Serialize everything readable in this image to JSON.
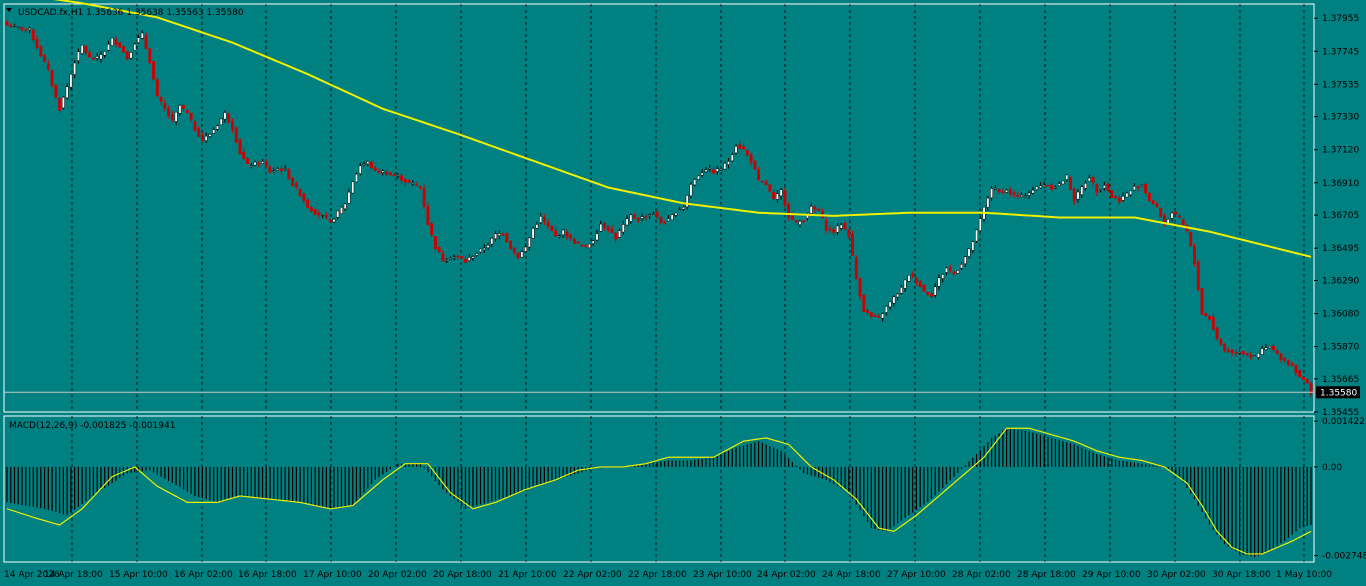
{
  "header": {
    "symbol_line": "USDCAD.fx,H1  1.35636 1.35638 1.35563 1.35580",
    "menu_icon": "triangle-down-icon"
  },
  "colors": {
    "background": "#008080",
    "bull_candle": "#ffffff",
    "bear_candle": "#cc0000",
    "ma_line": "#f0f000",
    "macd_signal": "#f0f000",
    "grid": "#000000",
    "price_line": "#c8c8c8"
  },
  "chart_data": [
    {
      "type": "candlestick",
      "symbol": "USDCAD.fx",
      "timeframe": "H1",
      "current_price": "1.35580",
      "ohlc_last": {
        "open": 1.35636,
        "high": 1.35638,
        "low": 1.35563,
        "close": 1.3558
      },
      "ylim": [
        1.35455,
        1.38045
      ],
      "y_ticks": [
        "1.37955",
        "1.37745",
        "1.37535",
        "1.37330",
        "1.37120",
        "1.36910",
        "1.36705",
        "1.36495",
        "1.36290",
        "1.36080",
        "1.35870",
        "1.35665",
        "1.35455"
      ],
      "x_ticks": [
        "14 Apr 2026",
        "14 Apr 18:00",
        "15 Apr 10:00",
        "16 Apr 02:00",
        "16 Apr 18:00",
        "17 Apr 10:00",
        "20 Apr 02:00",
        "20 Apr 18:00",
        "21 Apr 10:00",
        "22 Apr 02:00",
        "22 Apr 18:00",
        "23 Apr 10:00",
        "24 Apr 02:00",
        "24 Apr 18:00",
        "27 Apr 10:00",
        "28 Apr 02:00",
        "28 Apr 18:00",
        "29 Apr 10:00",
        "30 Apr 02:00",
        "30 Apr 18:00",
        "1 May 10:00"
      ],
      "grid": true,
      "price_anchors": [
        [
          0,
          1.3791
        ],
        [
          4,
          1.3789
        ],
        [
          6,
          1.3788
        ],
        [
          9,
          1.3772
        ],
        [
          11,
          1.3762
        ],
        [
          13,
          1.3745
        ],
        [
          14,
          1.3738
        ],
        [
          16,
          1.3752
        ],
        [
          18,
          1.3768
        ],
        [
          20,
          1.3778
        ],
        [
          22,
          1.377
        ],
        [
          24,
          1.377
        ],
        [
          26,
          1.3775
        ],
        [
          28,
          1.3782
        ],
        [
          30,
          1.3778
        ],
        [
          32,
          1.377
        ],
        [
          34,
          1.378
        ],
        [
          36,
          1.3785
        ],
        [
          38,
          1.3768
        ],
        [
          40,
          1.3745
        ],
        [
          42,
          1.3738
        ],
        [
          44,
          1.373
        ],
        [
          46,
          1.374
        ],
        [
          48,
          1.3735
        ],
        [
          50,
          1.3725
        ],
        [
          52,
          1.3718
        ],
        [
          54,
          1.3722
        ],
        [
          56,
          1.3728
        ],
        [
          58,
          1.3735
        ],
        [
          60,
          1.3726
        ],
        [
          62,
          1.371
        ],
        [
          64,
          1.3702
        ],
        [
          66,
          1.3703
        ],
        [
          68,
          1.3704
        ],
        [
          70,
          1.3698
        ],
        [
          72,
          1.37
        ],
        [
          74,
          1.3699
        ],
        [
          76,
          1.369
        ],
        [
          78,
          1.3684
        ],
        [
          80,
          1.3676
        ],
        [
          82,
          1.3672
        ],
        [
          84,
          1.367
        ],
        [
          86,
          1.3666
        ],
        [
          88,
          1.3672
        ],
        [
          90,
          1.3678
        ],
        [
          92,
          1.3692
        ],
        [
          94,
          1.3702
        ],
        [
          96,
          1.3704
        ],
        [
          98,
          1.3698
        ],
        [
          100,
          1.3698
        ],
        [
          102,
          1.3696
        ],
        [
          104,
          1.3695
        ],
        [
          106,
          1.3692
        ],
        [
          108,
          1.369
        ],
        [
          110,
          1.3688
        ],
        [
          112,
          1.3665
        ],
        [
          114,
          1.365
        ],
        [
          116,
          1.3642
        ],
        [
          118,
          1.3644
        ],
        [
          120,
          1.3644
        ],
        [
          122,
          1.3641
        ],
        [
          124,
          1.3645
        ],
        [
          126,
          1.3648
        ],
        [
          128,
          1.3652
        ],
        [
          130,
          1.3658
        ],
        [
          132,
          1.3659
        ],
        [
          134,
          1.365
        ],
        [
          136,
          1.3644
        ],
        [
          138,
          1.365
        ],
        [
          140,
          1.3662
        ],
        [
          142,
          1.3669
        ],
        [
          144,
          1.3663
        ],
        [
          146,
          1.3657
        ],
        [
          148,
          1.366
        ],
        [
          150,
          1.3655
        ],
        [
          152,
          1.3652
        ],
        [
          154,
          1.365
        ],
        [
          156,
          1.3655
        ],
        [
          158,
          1.3665
        ],
        [
          160,
          1.3662
        ],
        [
          162,
          1.3656
        ],
        [
          164,
          1.3664
        ],
        [
          166,
          1.367
        ],
        [
          168,
          1.3668
        ],
        [
          170,
          1.367
        ],
        [
          172,
          1.3672
        ],
        [
          174,
          1.3666
        ],
        [
          176,
          1.3667
        ],
        [
          178,
          1.3673
        ],
        [
          180,
          1.3676
        ],
        [
          182,
          1.369
        ],
        [
          184,
          1.3696
        ],
        [
          186,
          1.37
        ],
        [
          188,
          1.3698
        ],
        [
          190,
          1.37
        ],
        [
          192,
          1.3705
        ],
        [
          194,
          1.3715
        ],
        [
          196,
          1.3712
        ],
        [
          198,
          1.3705
        ],
        [
          200,
          1.3692
        ],
        [
          202,
          1.369
        ],
        [
          204,
          1.368
        ],
        [
          206,
          1.3686
        ],
        [
          208,
          1.367
        ],
        [
          210,
          1.3665
        ],
        [
          212,
          1.3668
        ],
        [
          214,
          1.3675
        ],
        [
          216,
          1.3673
        ],
        [
          218,
          1.3662
        ],
        [
          220,
          1.366
        ],
        [
          222,
          1.3665
        ],
        [
          224,
          1.3658
        ],
        [
          226,
          1.363
        ],
        [
          228,
          1.361
        ],
        [
          230,
          1.3606
        ],
        [
          232,
          1.3605
        ],
        [
          234,
          1.3612
        ],
        [
          236,
          1.3618
        ],
        [
          238,
          1.3624
        ],
        [
          240,
          1.3633
        ],
        [
          242,
          1.3629
        ],
        [
          244,
          1.3622
        ],
        [
          246,
          1.362
        ],
        [
          248,
          1.363
        ],
        [
          250,
          1.3637
        ],
        [
          252,
          1.3633
        ],
        [
          254,
          1.364
        ],
        [
          256,
          1.3648
        ],
        [
          258,
          1.366
        ],
        [
          260,
          1.3675
        ],
        [
          262,
          1.3688
        ],
        [
          264,
          1.3685
        ],
        [
          266,
          1.3686
        ],
        [
          268,
          1.3683
        ],
        [
          270,
          1.3682
        ],
        [
          272,
          1.3685
        ],
        [
          274,
          1.3688
        ],
        [
          276,
          1.369
        ],
        [
          278,
          1.3688
        ],
        [
          280,
          1.369
        ],
        [
          282,
          1.3695
        ],
        [
          284,
          1.368
        ],
        [
          286,
          1.3688
        ],
        [
          288,
          1.3695
        ],
        [
          290,
          1.3686
        ],
        [
          292,
          1.369
        ],
        [
          294,
          1.3682
        ],
        [
          296,
          1.368
        ],
        [
          298,
          1.3684
        ],
        [
          300,
          1.3688
        ],
        [
          302,
          1.369
        ],
        [
          304,
          1.368
        ],
        [
          306,
          1.3675
        ],
        [
          308,
          1.3665
        ],
        [
          310,
          1.3672
        ],
        [
          312,
          1.3668
        ],
        [
          314,
          1.366
        ],
        [
          316,
          1.364
        ],
        [
          318,
          1.3608
        ],
        [
          320,
          1.3605
        ],
        [
          322,
          1.3592
        ],
        [
          324,
          1.3585
        ],
        [
          326,
          1.3583
        ],
        [
          328,
          1.3584
        ],
        [
          330,
          1.3582
        ],
        [
          332,
          1.358
        ],
        [
          334,
          1.3585
        ],
        [
          336,
          1.3587
        ],
        [
          338,
          1.3582
        ],
        [
          340,
          1.3578
        ],
        [
          342,
          1.3575
        ],
        [
          344,
          1.3568
        ],
        [
          346,
          1.3563
        ],
        [
          347,
          1.3558
        ]
      ],
      "moving_average_anchors": [
        [
          0,
          1.3812
        ],
        [
          20,
          1.3805
        ],
        [
          40,
          1.3796
        ],
        [
          60,
          1.378
        ],
        [
          80,
          1.376
        ],
        [
          100,
          1.3738
        ],
        [
          120,
          1.3722
        ],
        [
          140,
          1.3705
        ],
        [
          160,
          1.3688
        ],
        [
          180,
          1.3678
        ],
        [
          200,
          1.3672
        ],
        [
          220,
          1.367
        ],
        [
          240,
          1.3672
        ],
        [
          260,
          1.3672
        ],
        [
          280,
          1.3669
        ],
        [
          300,
          1.3669
        ],
        [
          320,
          1.366
        ],
        [
          347,
          1.3644
        ]
      ]
    },
    {
      "type": "histogram+line",
      "title": "MACD(12,26,9) -0.001825 -0.001941",
      "ylim": [
        -0.00295,
        0.00158
      ],
      "y_ticks": [
        "0.001422",
        "0.00",
        "-0.002748"
      ],
      "macd_anchors": [
        [
          0,
          -0.0011
        ],
        [
          10,
          -0.0013
        ],
        [
          16,
          -0.0015
        ],
        [
          24,
          -0.0008
        ],
        [
          32,
          -0.0002
        ],
        [
          38,
          -0.0001
        ],
        [
          44,
          -0.0005
        ],
        [
          50,
          -0.0009
        ],
        [
          56,
          -0.0011
        ],
        [
          62,
          -0.0009
        ],
        [
          70,
          -0.001
        ],
        [
          78,
          -0.0011
        ],
        [
          86,
          -0.0013
        ],
        [
          92,
          -0.0012
        ],
        [
          98,
          -0.0004
        ],
        [
          104,
          0.0001
        ],
        [
          110,
          0.0001
        ],
        [
          116,
          -0.0007
        ],
        [
          122,
          -0.0013
        ],
        [
          128,
          -0.0011
        ],
        [
          134,
          -0.0009
        ],
        [
          140,
          -0.0006
        ],
        [
          146,
          -0.0004
        ],
        [
          152,
          -0.0002
        ],
        [
          158,
          0.0
        ],
        [
          164,
          0.0
        ],
        [
          170,
          0.0001
        ],
        [
          176,
          0.0002
        ],
        [
          182,
          0.0002
        ],
        [
          188,
          0.0003
        ],
        [
          194,
          0.0006
        ],
        [
          200,
          0.0008
        ],
        [
          206,
          0.0005
        ],
        [
          212,
          -0.0002
        ],
        [
          218,
          -0.0004
        ],
        [
          224,
          -0.0008
        ],
        [
          230,
          -0.0019
        ],
        [
          234,
          -0.002
        ],
        [
          240,
          -0.0015
        ],
        [
          246,
          -0.001
        ],
        [
          252,
          -0.0003
        ],
        [
          258,
          0.0004
        ],
        [
          262,
          0.0009
        ],
        [
          266,
          0.0012
        ],
        [
          272,
          0.0011
        ],
        [
          278,
          0.0009
        ],
        [
          284,
          0.0007
        ],
        [
          290,
          0.0004
        ],
        [
          296,
          0.0002
        ],
        [
          302,
          0.0001
        ],
        [
          308,
          0.0
        ],
        [
          312,
          -0.0003
        ],
        [
          316,
          -0.001
        ],
        [
          320,
          -0.0018
        ],
        [
          324,
          -0.0024
        ],
        [
          328,
          -0.0027
        ],
        [
          332,
          -0.0028
        ],
        [
          336,
          -0.0026
        ],
        [
          340,
          -0.0023
        ],
        [
          344,
          -0.0019
        ],
        [
          347,
          -0.0018
        ]
      ],
      "signal_anchors": [
        [
          0,
          -0.0013
        ],
        [
          8,
          -0.0016
        ],
        [
          14,
          -0.0018
        ],
        [
          20,
          -0.0013
        ],
        [
          28,
          -0.0003
        ],
        [
          34,
          0.0
        ],
        [
          40,
          -0.0006
        ],
        [
          48,
          -0.0011
        ],
        [
          56,
          -0.0011
        ],
        [
          62,
          -0.0009
        ],
        [
          70,
          -0.001
        ],
        [
          78,
          -0.0011
        ],
        [
          86,
          -0.0013
        ],
        [
          92,
          -0.0012
        ],
        [
          100,
          -0.0004
        ],
        [
          106,
          0.0001
        ],
        [
          112,
          0.0001
        ],
        [
          118,
          -0.0008
        ],
        [
          124,
          -0.0013
        ],
        [
          130,
          -0.0011
        ],
        [
          138,
          -0.0007
        ],
        [
          146,
          -0.0004
        ],
        [
          152,
          -0.0001
        ],
        [
          158,
          0.0
        ],
        [
          164,
          0.0
        ],
        [
          170,
          0.0001
        ],
        [
          176,
          0.0003
        ],
        [
          182,
          0.0003
        ],
        [
          188,
          0.0003
        ],
        [
          196,
          0.0008
        ],
        [
          202,
          0.0009
        ],
        [
          208,
          0.0007
        ],
        [
          214,
          0.0
        ],
        [
          220,
          -0.0004
        ],
        [
          226,
          -0.001
        ],
        [
          232,
          -0.0019
        ],
        [
          236,
          -0.002
        ],
        [
          242,
          -0.0015
        ],
        [
          248,
          -0.0009
        ],
        [
          254,
          -0.0003
        ],
        [
          260,
          0.0003
        ],
        [
          266,
          0.0012
        ],
        [
          272,
          0.0012
        ],
        [
          278,
          0.001
        ],
        [
          284,
          0.0008
        ],
        [
          290,
          0.0005
        ],
        [
          296,
          0.0003
        ],
        [
          302,
          0.0002
        ],
        [
          308,
          0.0
        ],
        [
          314,
          -0.0005
        ],
        [
          318,
          -0.0012
        ],
        [
          322,
          -0.002
        ],
        [
          326,
          -0.0025
        ],
        [
          330,
          -0.0027
        ],
        [
          334,
          -0.0027
        ],
        [
          338,
          -0.0025
        ],
        [
          342,
          -0.0023
        ],
        [
          347,
          -0.002
        ]
      ]
    }
  ]
}
